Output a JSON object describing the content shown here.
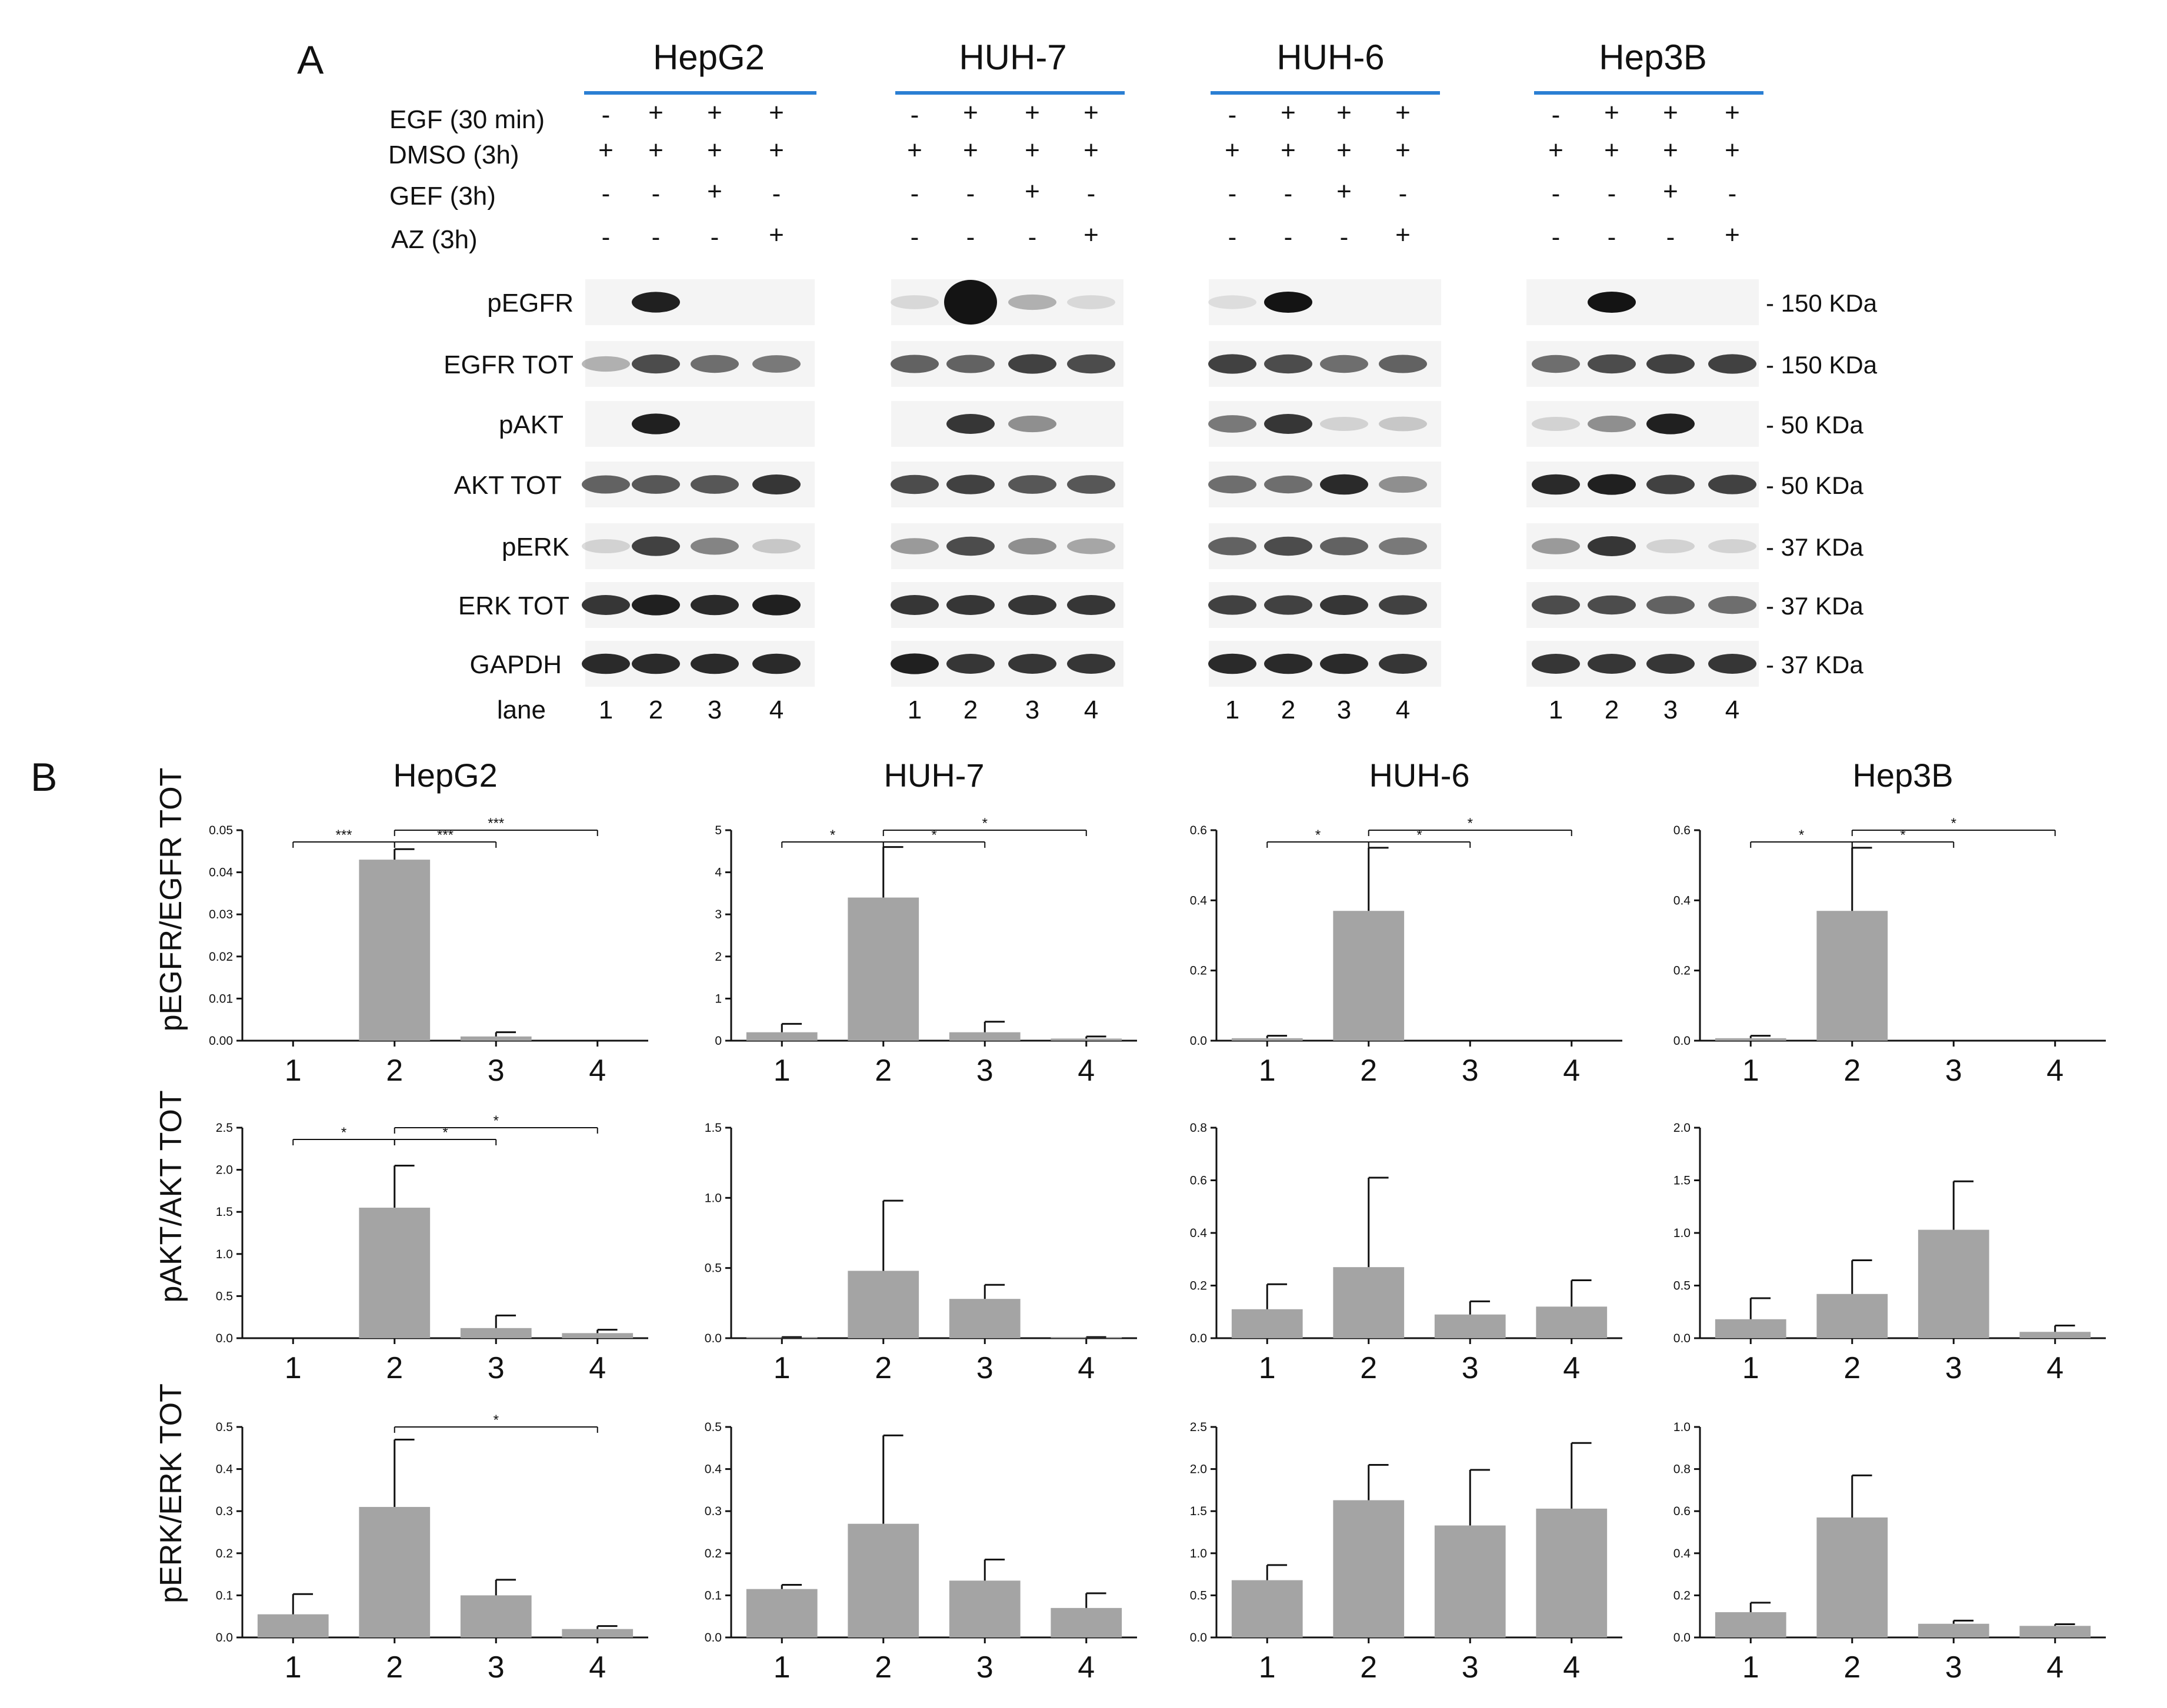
{
  "panel_a": {
    "label": "A",
    "groups": [
      "HepG2",
      "HUH-7",
      "HUH-6",
      "Hep3B"
    ],
    "conditions": [
      {
        "label": "EGF (30 min)",
        "signs": [
          "-",
          "+",
          "+",
          "+"
        ]
      },
      {
        "label": "DMSO (3h)",
        "signs": [
          "+",
          "+",
          "+",
          "+"
        ]
      },
      {
        "label": "GEF (3h)",
        "signs": [
          "-",
          "-",
          "+",
          "-"
        ]
      },
      {
        "label": "AZ (3h)",
        "signs": [
          "-",
          "-",
          "-",
          "+"
        ]
      }
    ],
    "blot_rows": [
      "pEGFR",
      "EGFR TOT",
      "pAKT",
      "AKT TOT",
      "pERK",
      "ERK TOT",
      "GAPDH"
    ],
    "kda_labels": [
      "- 150 KDa",
      "- 150 KDa",
      "- 50 KDa",
      "- 50 KDa",
      "- 37 KDa",
      "- 37 KDa",
      "- 37 KDa"
    ],
    "lane_label": "lane",
    "lane_numbers": [
      "1",
      "2",
      "3",
      "4"
    ],
    "band_intensity": [
      [
        [
          0.0,
          0.95,
          0.0,
          0.0
        ],
        [
          0.12,
          1.0,
          0.3,
          0.12
        ],
        [
          0.1,
          1.0,
          0.0,
          0.0
        ],
        [
          0.0,
          1.0,
          0.0,
          0.0
        ]
      ],
      [
        [
          0.3,
          0.75,
          0.6,
          0.55
        ],
        [
          0.65,
          0.65,
          0.8,
          0.75
        ],
        [
          0.8,
          0.75,
          0.6,
          0.65
        ],
        [
          0.6,
          0.75,
          0.8,
          0.8
        ]
      ],
      [
        [
          0.0,
          0.95,
          0.0,
          0.0
        ],
        [
          0.0,
          0.85,
          0.45,
          0.0
        ],
        [
          0.55,
          0.85,
          0.15,
          0.2
        ],
        [
          0.15,
          0.45,
          0.95,
          0.0
        ]
      ],
      [
        [
          0.65,
          0.7,
          0.7,
          0.85
        ],
        [
          0.75,
          0.8,
          0.7,
          0.7
        ],
        [
          0.6,
          0.6,
          0.9,
          0.45
        ],
        [
          0.9,
          0.95,
          0.8,
          0.8
        ]
      ],
      [
        [
          0.15,
          0.8,
          0.5,
          0.2
        ],
        [
          0.4,
          0.75,
          0.45,
          0.35
        ],
        [
          0.65,
          0.75,
          0.65,
          0.55
        ],
        [
          0.4,
          0.85,
          0.15,
          0.15
        ]
      ],
      [
        [
          0.85,
          0.95,
          0.9,
          0.95
        ],
        [
          0.85,
          0.85,
          0.85,
          0.85
        ],
        [
          0.8,
          0.8,
          0.85,
          0.8
        ],
        [
          0.75,
          0.75,
          0.65,
          0.6
        ]
      ],
      [
        [
          0.9,
          0.9,
          0.9,
          0.9
        ],
        [
          0.95,
          0.85,
          0.85,
          0.85
        ],
        [
          0.9,
          0.9,
          0.9,
          0.85
        ],
        [
          0.85,
          0.85,
          0.85,
          0.85
        ]
      ]
    ]
  },
  "panel_b": {
    "label": "B",
    "row_ylabels": [
      "pEGFR/EGFR TOT",
      "pAKT/AKT TOT",
      "pERK/ERK TOT"
    ]
  },
  "chart_data": [
    {
      "type": "bar",
      "title": "HepG2",
      "ylabel": "pEGFR/EGFR TOT",
      "categories": [
        "1",
        "2",
        "3",
        "4"
      ],
      "values": [
        0.0,
        0.043,
        0.001,
        0.0
      ],
      "errors": [
        0.0,
        0.0025,
        0.001,
        0.0
      ],
      "ylim": [
        0,
        0.05
      ],
      "yticks": [
        "0.00",
        "0.01",
        "0.02",
        "0.03",
        "0.04",
        "0.05"
      ],
      "significance": [
        {
          "from": 1,
          "to": 2,
          "label": "***"
        },
        {
          "from": 2,
          "to": 3,
          "label": "***"
        },
        {
          "from": 2,
          "to": 4,
          "label": "***"
        }
      ]
    },
    {
      "type": "bar",
      "title": "HUH-7",
      "ylabel": "pEGFR/EGFR TOT",
      "categories": [
        "1",
        "2",
        "3",
        "4"
      ],
      "values": [
        0.2,
        3.4,
        0.2,
        0.05
      ],
      "errors": [
        0.2,
        1.2,
        0.25,
        0.05
      ],
      "ylim": [
        0,
        5
      ],
      "yticks": [
        "0",
        "1",
        "2",
        "3",
        "4",
        "5"
      ],
      "significance": [
        {
          "from": 1,
          "to": 2,
          "label": "*"
        },
        {
          "from": 2,
          "to": 3,
          "label": "*"
        },
        {
          "from": 2,
          "to": 4,
          "label": "*"
        }
      ]
    },
    {
      "type": "bar",
      "title": "HUH-6",
      "ylabel": "pEGFR/EGFR TOT",
      "categories": [
        "1",
        "2",
        "3",
        "4"
      ],
      "values": [
        0.007,
        0.37,
        0.0,
        0.0
      ],
      "errors": [
        0.007,
        0.18,
        0.0,
        0.0
      ],
      "ylim": [
        0,
        0.6
      ],
      "yticks": [
        "0.0",
        "0.2",
        "0.4",
        "0.6"
      ],
      "significance": [
        {
          "from": 1,
          "to": 2,
          "label": "*"
        },
        {
          "from": 2,
          "to": 3,
          "label": "*"
        },
        {
          "from": 2,
          "to": 4,
          "label": "*"
        }
      ]
    },
    {
      "type": "bar",
      "title": "Hep3B",
      "ylabel": "pEGFR/EGFR TOT",
      "categories": [
        "1",
        "2",
        "3",
        "4"
      ],
      "values": [
        0.007,
        0.37,
        0.0,
        0.0
      ],
      "errors": [
        0.007,
        0.18,
        0.0,
        0.0
      ],
      "ylim": [
        0,
        0.6
      ],
      "yticks": [
        "0.0",
        "0.2",
        "0.4",
        "0.6"
      ],
      "significance": [
        {
          "from": 1,
          "to": 2,
          "label": "*"
        },
        {
          "from": 2,
          "to": 3,
          "label": "*"
        },
        {
          "from": 2,
          "to": 4,
          "label": "*"
        }
      ]
    },
    {
      "type": "bar",
      "title": "",
      "ylabel": "pAKT/AKT TOT",
      "categories": [
        "1",
        "2",
        "3",
        "4"
      ],
      "values": [
        0.0,
        1.55,
        0.12,
        0.06
      ],
      "errors": [
        0.0,
        0.5,
        0.15,
        0.04
      ],
      "ylim": [
        0,
        2.5
      ],
      "yticks": [
        "0.0",
        "0.5",
        "1.0",
        "1.5",
        "2.0",
        "2.5"
      ],
      "significance": [
        {
          "from": 1,
          "to": 2,
          "label": "*"
        },
        {
          "from": 2,
          "to": 3,
          "label": "*"
        },
        {
          "from": 2,
          "to": 4,
          "label": "*"
        }
      ]
    },
    {
      "type": "bar",
      "title": "",
      "ylabel": "pAKT/AKT TOT",
      "categories": [
        "1",
        "2",
        "3",
        "4"
      ],
      "values": [
        0.005,
        0.48,
        0.28,
        0.005
      ],
      "errors": [
        0.003,
        0.5,
        0.1,
        0.003
      ],
      "ylim": [
        0,
        1.5
      ],
      "yticks": [
        "0.0",
        "0.5",
        "1.0",
        "1.5"
      ],
      "significance": []
    },
    {
      "type": "bar",
      "title": "",
      "ylabel": "pAKT/AKT TOT",
      "categories": [
        "1",
        "2",
        "3",
        "4"
      ],
      "values": [
        0.11,
        0.27,
        0.09,
        0.12
      ],
      "errors": [
        0.095,
        0.34,
        0.05,
        0.1
      ],
      "ylim": [
        0,
        0.8
      ],
      "yticks": [
        "0.0",
        "0.2",
        "0.4",
        "0.6",
        "0.8"
      ],
      "significance": []
    },
    {
      "type": "bar",
      "title": "",
      "ylabel": "pAKT/AKT TOT",
      "categories": [
        "1",
        "2",
        "3",
        "4"
      ],
      "values": [
        0.18,
        0.42,
        1.03,
        0.06
      ],
      "errors": [
        0.2,
        0.32,
        0.46,
        0.06
      ],
      "ylim": [
        0,
        2.0
      ],
      "yticks": [
        "0.0",
        "0.5",
        "1.0",
        "1.5",
        "2.0"
      ],
      "significance": []
    },
    {
      "type": "bar",
      "title": "",
      "ylabel": "pERK/ERK TOT",
      "categories": [
        "1",
        "2",
        "3",
        "4"
      ],
      "values": [
        0.055,
        0.31,
        0.1,
        0.02
      ],
      "errors": [
        0.048,
        0.16,
        0.037,
        0.007
      ],
      "ylim": [
        0,
        0.5
      ],
      "yticks": [
        "0.0",
        "0.1",
        "0.2",
        "0.3",
        "0.4",
        "0.5"
      ],
      "significance": [
        {
          "from": 2,
          "to": 4,
          "label": "*"
        }
      ]
    },
    {
      "type": "bar",
      "title": "",
      "ylabel": "pERK/ERK TOT",
      "categories": [
        "1",
        "2",
        "3",
        "4"
      ],
      "values": [
        0.115,
        0.27,
        0.135,
        0.07
      ],
      "errors": [
        0.01,
        0.21,
        0.05,
        0.035
      ],
      "ylim": [
        0,
        0.5
      ],
      "yticks": [
        "0.0",
        "0.1",
        "0.2",
        "0.3",
        "0.4",
        "0.5"
      ],
      "significance": []
    },
    {
      "type": "bar",
      "title": "",
      "ylabel": "pERK/ERK TOT",
      "categories": [
        "1",
        "2",
        "3",
        "4"
      ],
      "values": [
        0.68,
        1.63,
        1.33,
        1.53
      ],
      "errors": [
        0.18,
        0.42,
        0.66,
        0.78
      ],
      "ylim": [
        0,
        2.5
      ],
      "yticks": [
        "0.0",
        "0.5",
        "1.0",
        "1.5",
        "2.0",
        "2.5"
      ],
      "significance": []
    },
    {
      "type": "bar",
      "title": "",
      "ylabel": "pERK/ERK TOT",
      "categories": [
        "1",
        "2",
        "3",
        "4"
      ],
      "values": [
        0.12,
        0.57,
        0.065,
        0.055
      ],
      "errors": [
        0.045,
        0.2,
        0.015,
        0.008
      ],
      "ylim": [
        0,
        1.0
      ],
      "yticks": [
        "0.0",
        "0.2",
        "0.4",
        "0.6",
        "0.8",
        "1.0"
      ],
      "significance": []
    }
  ],
  "colors": {
    "bar": "#a4a4a4",
    "group_rule": "#2b7fd3",
    "axis": "#111111",
    "blot_band": "#141414"
  }
}
